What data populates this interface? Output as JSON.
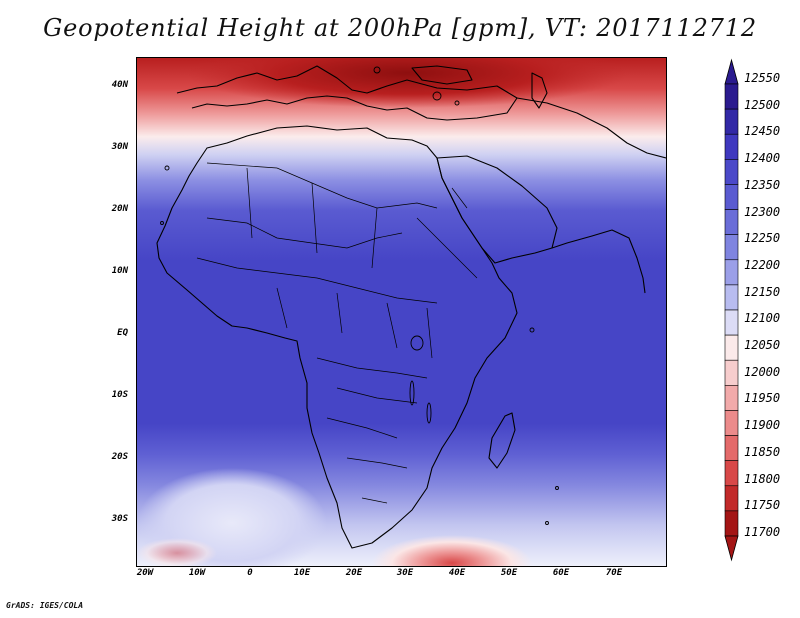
{
  "title": "Geopotential Height at 200hPa [gpm], VT: 2017112712",
  "credit": "GrADS: IGES/COLA",
  "y_ticks": [
    "40N",
    "30N",
    "20N",
    "10N",
    "EQ",
    "10S",
    "20S",
    "30S"
  ],
  "x_ticks": [
    "20W",
    "10W",
    "0",
    "10E",
    "20E",
    "30E",
    "40E",
    "50E",
    "60E",
    "70E"
  ],
  "colorbar": {
    "labels": [
      "12550",
      "12500",
      "12450",
      "12400",
      "12350",
      "12300",
      "12250",
      "12200",
      "12150",
      "12100",
      "12050",
      "12000",
      "11950",
      "11900",
      "11850",
      "11800",
      "11750",
      "11700"
    ],
    "colors": [
      "#2b1b8f",
      "#3228a6",
      "#3f38bf",
      "#4b49c9",
      "#5a5bd1",
      "#6a6dd8",
      "#7f84e0",
      "#9b9fe8",
      "#b8bcf0",
      "#dcdcf6",
      "#fbeaea",
      "#f7cdcd",
      "#f2aaaa",
      "#ec8b8b",
      "#e46a6a",
      "#d84848",
      "#c22a2a",
      "#a41515"
    ]
  },
  "map": {
    "region": "Africa",
    "lon_range": [
      -22,
      80
    ],
    "lat_range": [
      -37,
      45
    ]
  }
}
